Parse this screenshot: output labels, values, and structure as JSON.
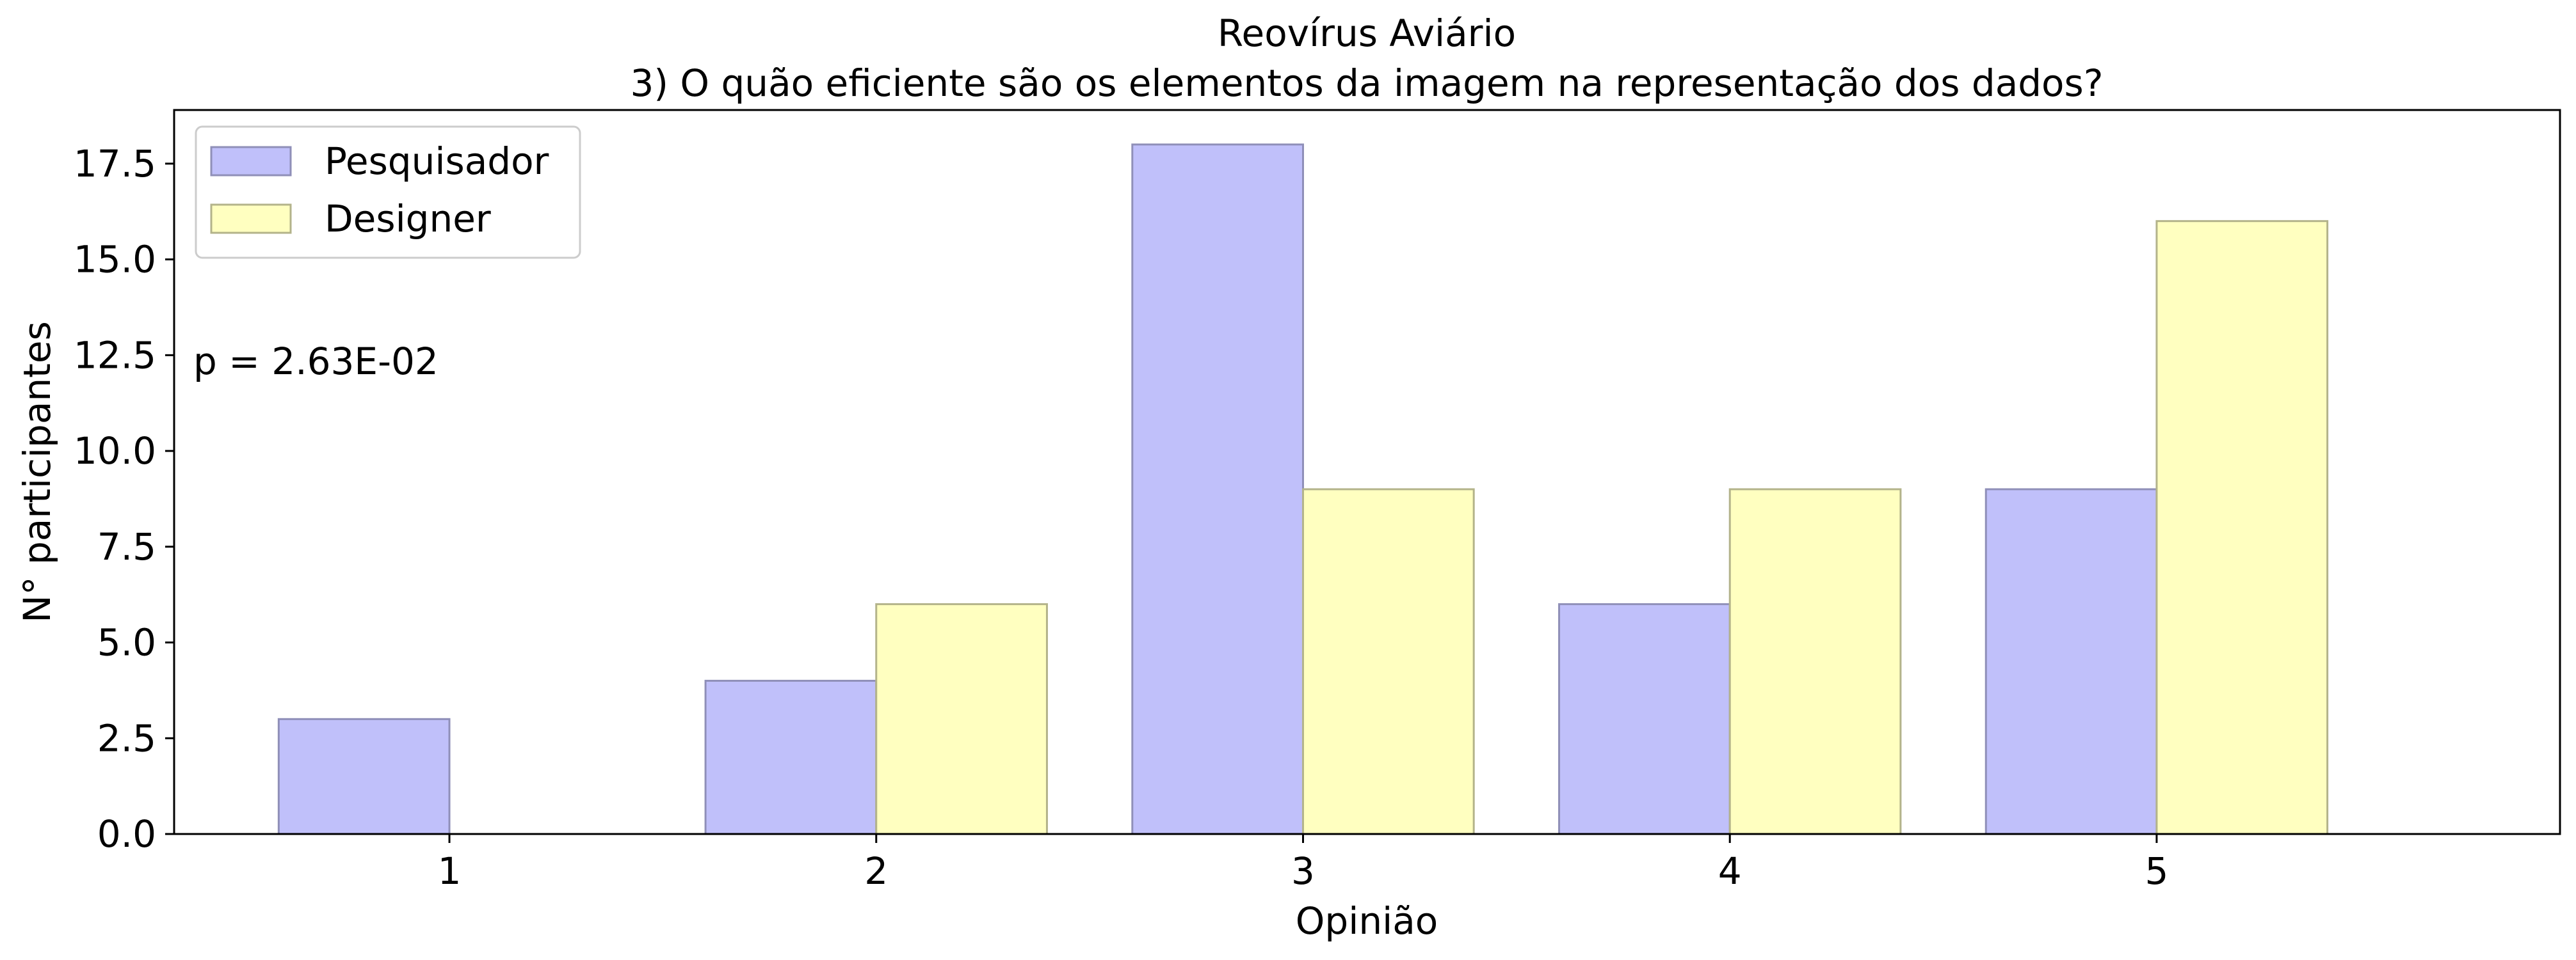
{
  "chart_data": {
    "type": "bar",
    "title": "Reovírus Aviário",
    "subtitle": "3) O quão eficiente são os elementos da imagem na representação dos dados?",
    "xlabel": "Opinião",
    "ylabel": "N° participantes",
    "categories": [
      "1",
      "2",
      "3",
      "4",
      "5"
    ],
    "series": [
      {
        "name": "Pesquisador",
        "values": [
          3,
          4,
          18,
          6,
          9
        ],
        "color": "#c0c0fa",
        "edge": "#8f8fb8"
      },
      {
        "name": "Designer",
        "values": [
          0,
          6,
          9,
          9,
          16
        ],
        "color": "#ffffc0",
        "edge": "#b3b38a"
      }
    ],
    "ylim": [
      0,
      18.9
    ],
    "yticks": [
      "0.0",
      "2.5",
      "5.0",
      "7.5",
      "10.0",
      "12.5",
      "15.0",
      "17.5"
    ],
    "annotation": "p = 2.63E-02",
    "legend": "top-left",
    "grid": false
  }
}
